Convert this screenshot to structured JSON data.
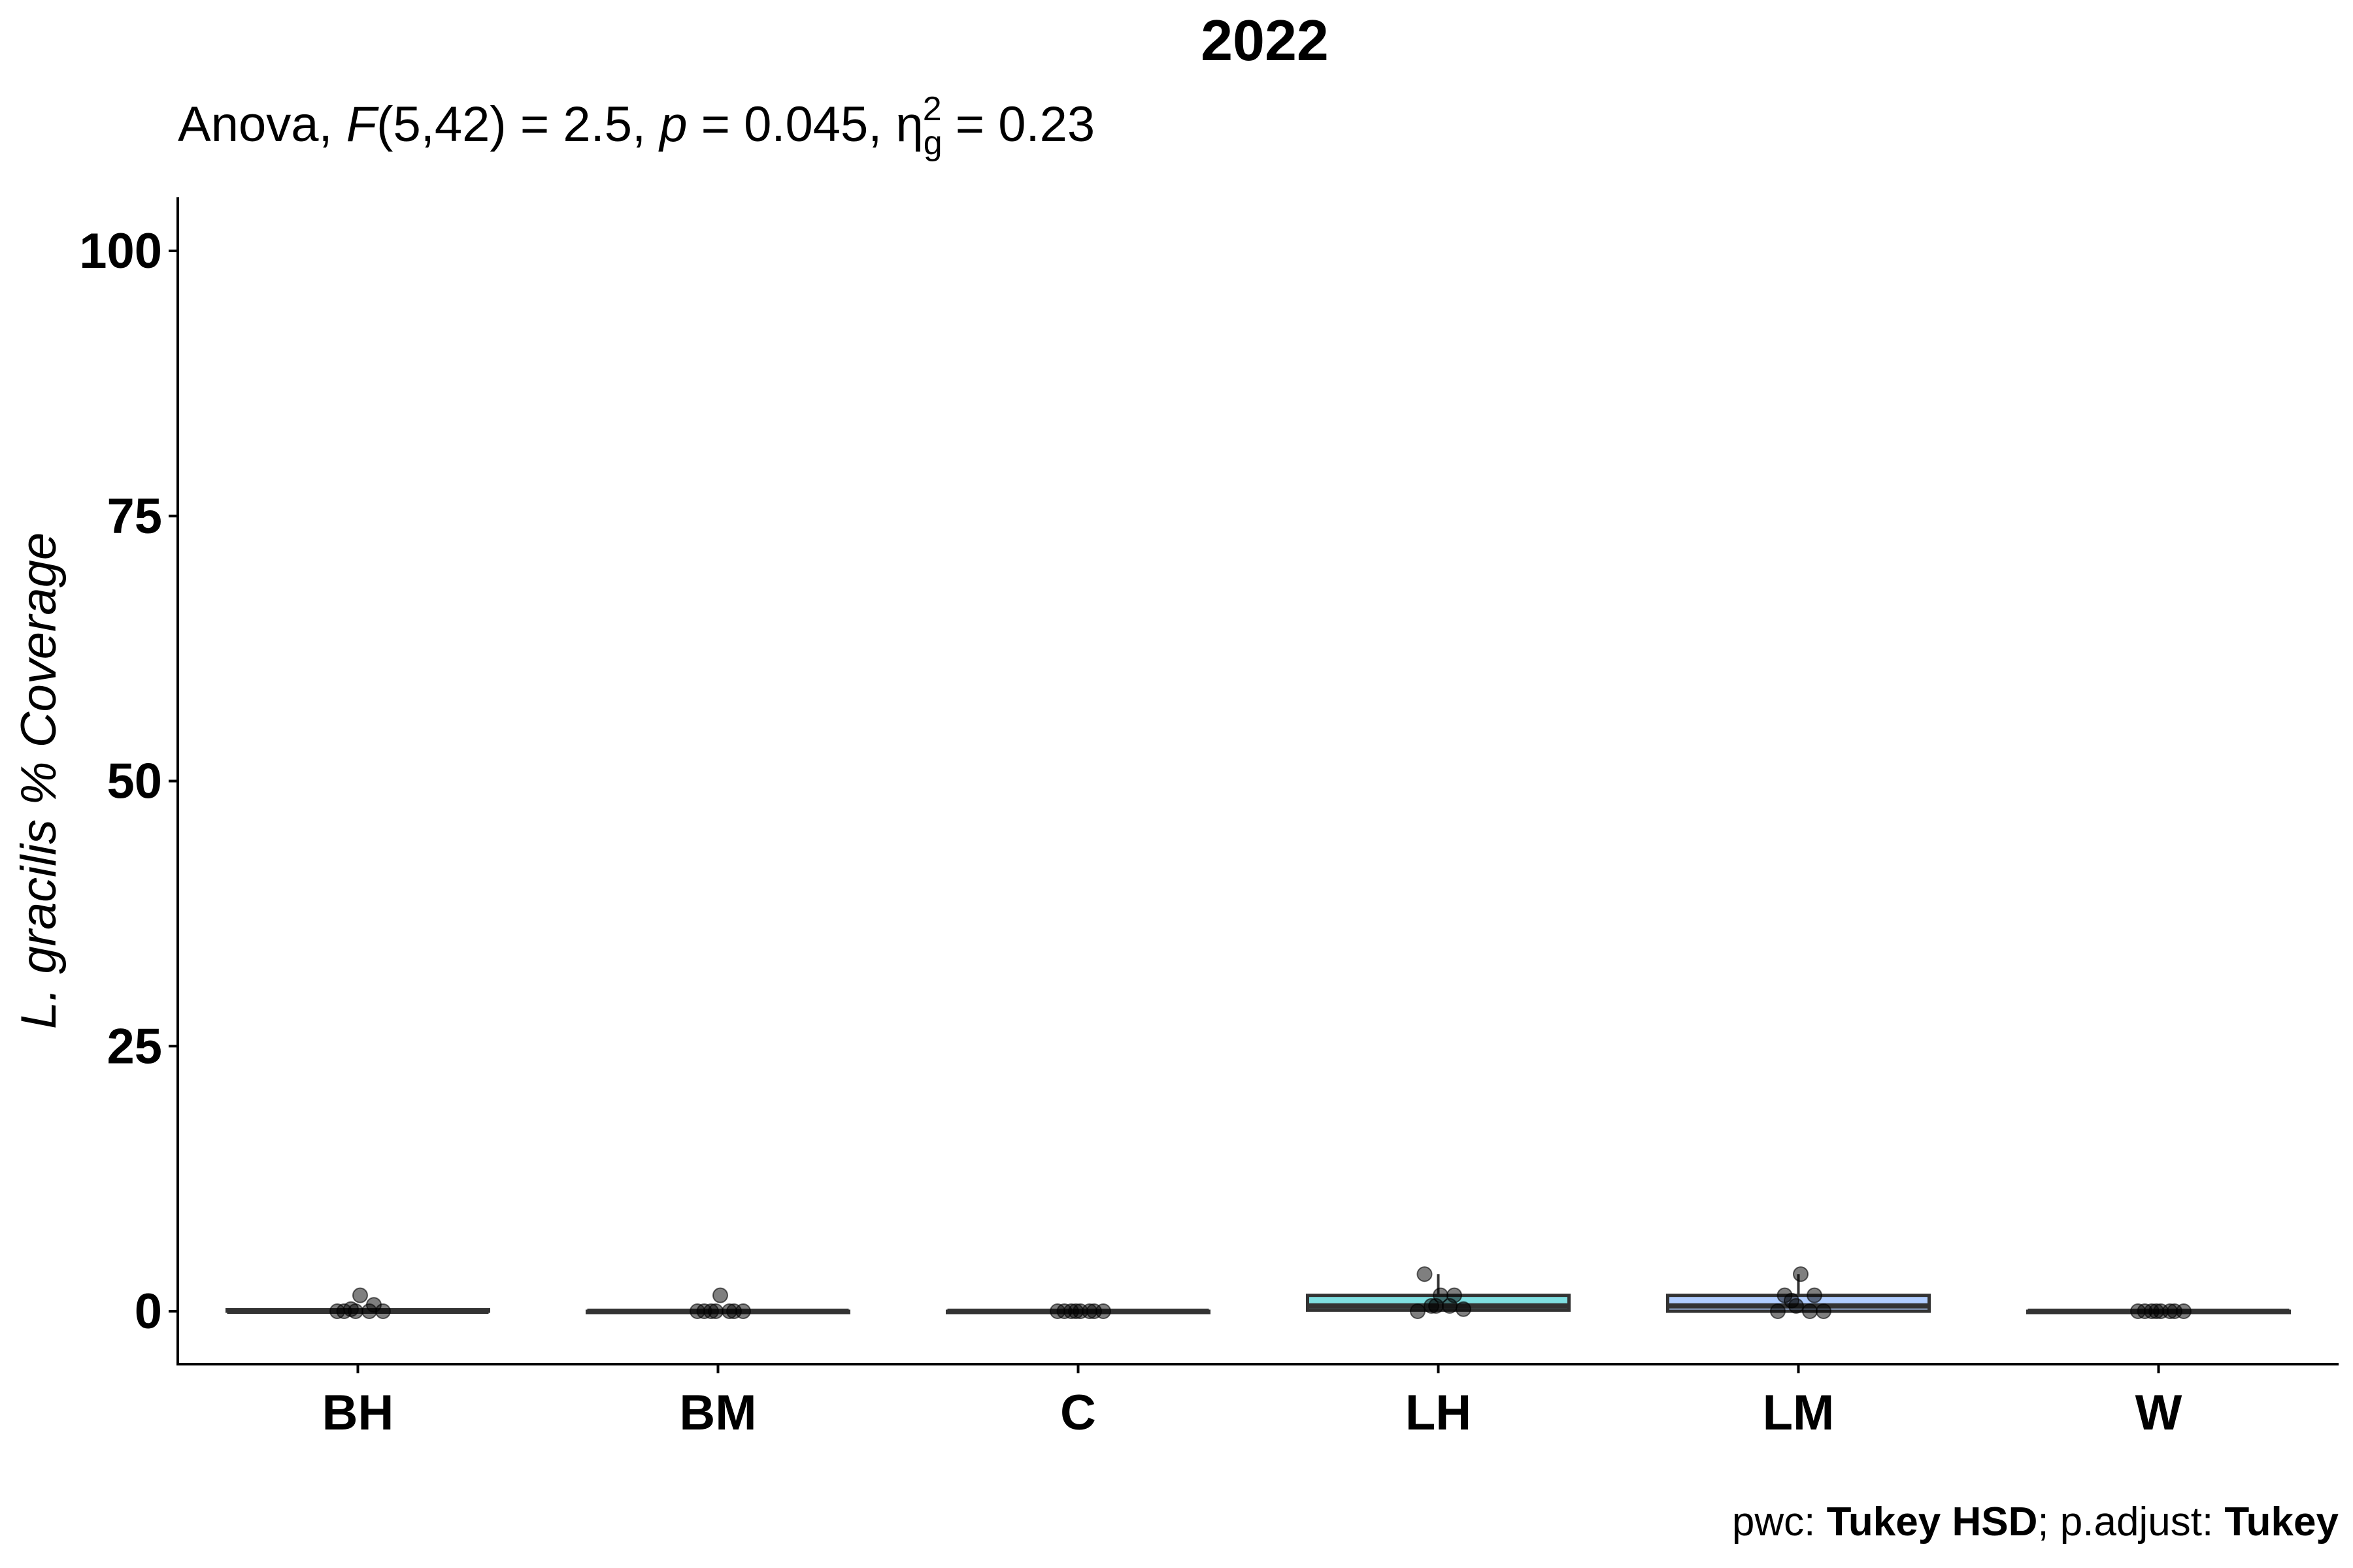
{
  "chart_data": {
    "type": "box",
    "title": "2022",
    "subtitle": {
      "p1": "Anova, ",
      "F": "F",
      "p2": "(5,42) = 2.5, ",
      "p": "p",
      "p3": " = 0.045, ",
      "eta": "η",
      "eta_sub": "g",
      "eta_sup": "2",
      "p4": " = 0.23"
    },
    "ylabel": "L. gracilis % Coverage",
    "xlabel": "",
    "ylim": [
      -2,
      105
    ],
    "yticks": [
      0,
      25,
      50,
      75,
      100
    ],
    "categories": [
      "BH",
      "BM",
      "C",
      "LH",
      "LM",
      "W"
    ],
    "fill_colors": [
      "#F8766D",
      "#B79F00",
      "#00BA38",
      "#00BFC4",
      "#619CFF",
      "#F564E3"
    ],
    "boxes": [
      {
        "q1": 0,
        "median": 0,
        "q3": 0.15,
        "whisker_low": 0,
        "whisker_high": 0.15
      },
      {
        "q1": 0,
        "median": 0,
        "q3": 0,
        "whisker_low": 0,
        "whisker_high": 0
      },
      {
        "q1": 0,
        "median": 0,
        "q3": 0,
        "whisker_low": 0,
        "whisker_high": 0
      },
      {
        "q1": 0.1,
        "median": 0.5,
        "q3": 1.5,
        "whisker_low": 0,
        "whisker_high": 3.5
      },
      {
        "q1": 0,
        "median": 0.5,
        "q3": 1.5,
        "whisker_low": 0,
        "whisker_high": 3.5
      },
      {
        "q1": 0,
        "median": 0,
        "q3": 0,
        "whisker_low": 0,
        "whisker_high": 0
      }
    ],
    "points": [
      [
        0,
        0,
        0.2,
        0.6,
        1.5,
        0,
        0,
        0
      ],
      [
        0,
        0,
        0,
        0,
        1.5,
        0,
        0,
        0
      ],
      [
        0,
        0,
        0,
        0,
        0,
        0,
        0,
        0
      ],
      [
        0,
        0.2,
        0.5,
        1.5,
        1.5,
        3.5,
        0.5,
        0.5
      ],
      [
        0,
        0,
        1,
        1.5,
        3.5,
        1.5,
        0,
        0.5
      ],
      [
        0,
        0,
        0,
        0,
        0,
        0,
        0,
        0
      ]
    ],
    "grid": false,
    "legend": "none"
  },
  "caption": {
    "pre": "pwc: ",
    "method": "Tukey HSD",
    "mid": "; p.adjust: ",
    "adjust": "Tukey"
  }
}
